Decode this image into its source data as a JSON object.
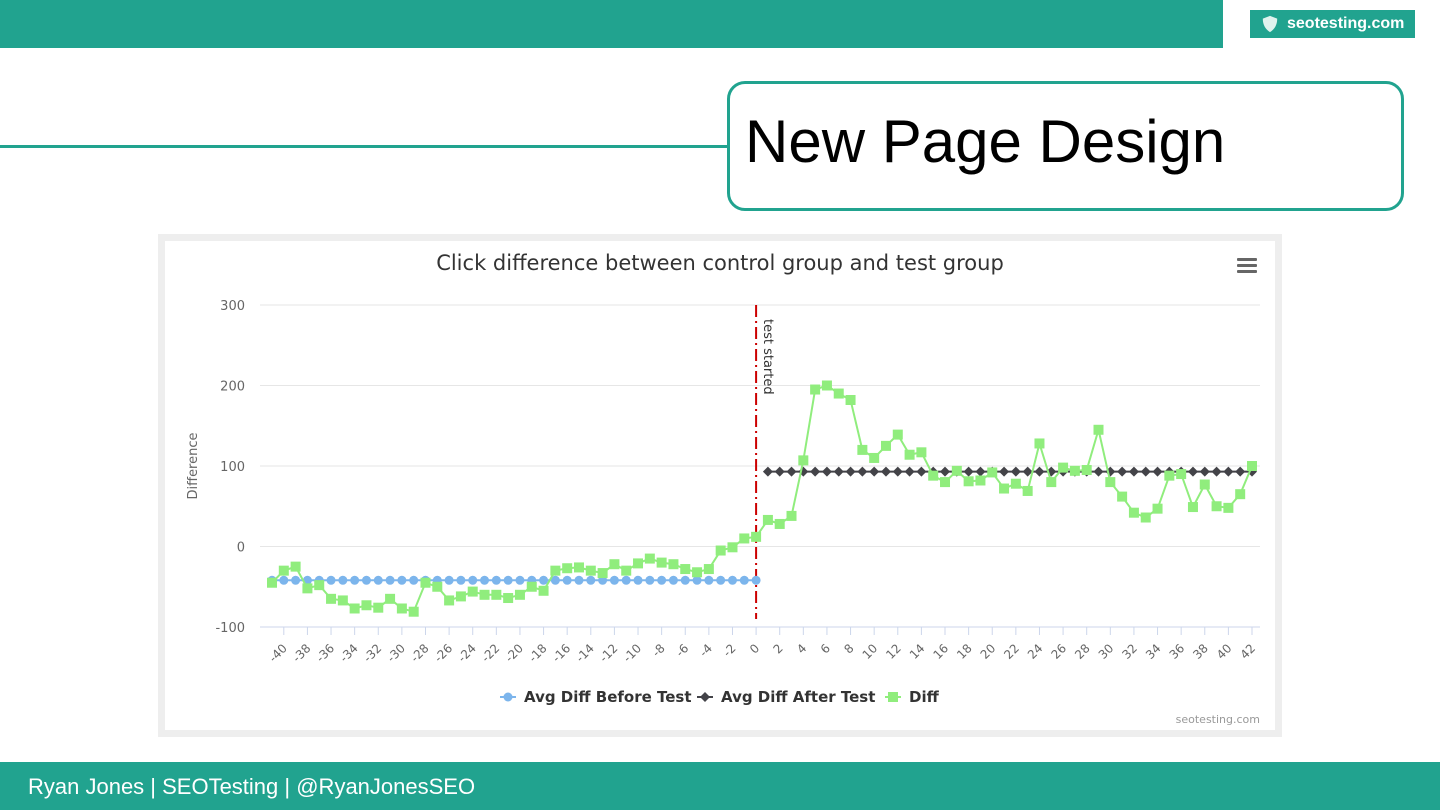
{
  "header": {
    "logo_text": "seotesting.com",
    "logo_icon": "shield-icon",
    "accent_color": "#21a38f"
  },
  "slide": {
    "title": "New Page Design"
  },
  "footer": {
    "text": "Ryan Jones | SEOTesting | @RyanJonesSEO"
  },
  "chart_data": {
    "type": "line",
    "title": "Click difference between control group and test group",
    "xlabel": "",
    "ylabel": "Difference",
    "ylim": [
      -100,
      300
    ],
    "xlim": [
      -41,
      42
    ],
    "yticks": [
      -100,
      0,
      100,
      200,
      300
    ],
    "xticks": [
      -40,
      -38,
      -36,
      -34,
      -32,
      -30,
      -28,
      -26,
      -24,
      -22,
      -20,
      -18,
      -16,
      -14,
      -12,
      -10,
      -8,
      -6,
      -4,
      -2,
      0,
      2,
      4,
      6,
      8,
      10,
      12,
      14,
      16,
      18,
      20,
      22,
      24,
      26,
      28,
      30,
      32,
      34,
      36,
      38,
      40,
      42
    ],
    "grid": true,
    "legend_position": "bottom",
    "credit": "seotesting.com",
    "annotation": {
      "x": 0,
      "label": "test started",
      "color": "#cc0000"
    },
    "series": [
      {
        "name": "Avg Diff Before Test",
        "color": "#7cb5ec",
        "marker": "circle",
        "x_start": -41,
        "x_end": 0,
        "constant": -42
      },
      {
        "name": "Avg Diff After Test",
        "color": "#434348",
        "marker": "diamond",
        "x_start": 1,
        "x_end": 42,
        "constant": 93
      },
      {
        "name": "Diff",
        "color": "#90ed7d",
        "marker": "square",
        "x_start": -41,
        "values": [
          -45,
          -30,
          -25,
          -52,
          -48,
          -65,
          -67,
          -77,
          -73,
          -76,
          -65,
          -77,
          -81,
          -45,
          -50,
          -67,
          -62,
          -56,
          -60,
          -60,
          -64,
          -60,
          -50,
          -55,
          -30,
          -27,
          -26,
          -30,
          -33,
          -22,
          -30,
          -21,
          -15,
          -20,
          -22,
          -28,
          -32,
          -28,
          -5,
          -1,
          10,
          12,
          33,
          28,
          38,
          107,
          195,
          200,
          190,
          182,
          120,
          110,
          125,
          139,
          114,
          117,
          88,
          80,
          94,
          81,
          82,
          92,
          72,
          78,
          69,
          128,
          80,
          98,
          94,
          95,
          145,
          80,
          62,
          42,
          36,
          47,
          88,
          90,
          49,
          77,
          50,
          48,
          65,
          100
        ]
      }
    ]
  }
}
